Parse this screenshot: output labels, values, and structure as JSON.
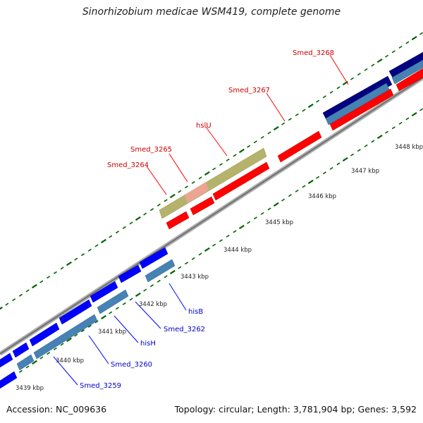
{
  "title": "Sinorhizobium medicae WSM419, complete genome",
  "footer": {
    "accession": "Accession: NC_009636",
    "topology": "Topology: circular; Length: 3,781,904 bp; Genes: 3,592"
  },
  "colors": {
    "forward_cds": "#ff0000",
    "reverse_cds": "#0000ff",
    "reverse_cds_light": "#4682b4",
    "rna_feature": "#b5b36b",
    "dark_feature": "#000080",
    "backbone": "#888888",
    "tick": "#006400",
    "forward_label": "#cc0000",
    "reverse_label": "#0000cc"
  },
  "kbp_ticks": [
    "3439 kbp",
    "3440 kbp",
    "3441 kbp",
    "3442 kbp",
    "3443 kbp",
    "3444 kbp",
    "3445 kbp",
    "3446 kbp",
    "3447 kbp",
    "3448 kbp"
  ],
  "forward_gene_labels": [
    "Smed_3264",
    "Smed_3265",
    "hslU",
    "Smed_3267",
    "Smed_3268"
  ],
  "reverse_gene_labels": [
    "hisB",
    "Smed_3262",
    "hisH",
    "Smed_3260",
    "Smed_3259"
  ]
}
